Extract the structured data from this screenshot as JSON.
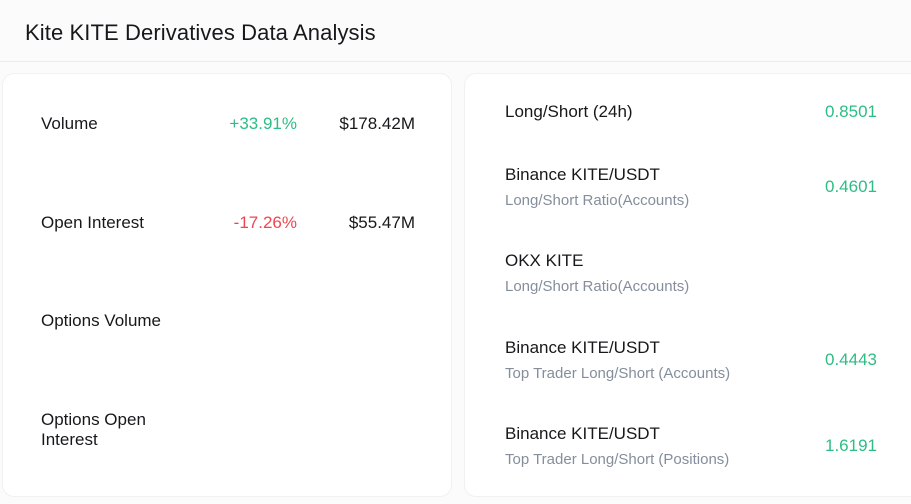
{
  "page": {
    "title": "Kite KITE Derivatives Data Analysis"
  },
  "colors": {
    "positive": "#2ebd85",
    "negative": "#ef4551",
    "ratio_value": "#2ebd85"
  },
  "left_panel": {
    "rows": [
      {
        "label": "Volume",
        "change": "+33.91%",
        "direction": "positive",
        "value": "$178.42M"
      },
      {
        "label": "Open Interest",
        "change": "-17.26%",
        "direction": "negative",
        "value": "$55.47M"
      },
      {
        "label": "Options Volume",
        "change": "",
        "direction": "",
        "value": ""
      },
      {
        "label": "Options Open Interest",
        "change": "",
        "direction": "",
        "value": ""
      }
    ]
  },
  "right_panel": {
    "rows": [
      {
        "title": "Long/Short (24h)",
        "subtitle": "",
        "value": "0.8501"
      },
      {
        "title": "Binance KITE/USDT",
        "subtitle": "Long/Short Ratio(Accounts)",
        "value": "0.4601"
      },
      {
        "title": "OKX KITE",
        "subtitle": "Long/Short Ratio(Accounts)",
        "value": ""
      },
      {
        "title": "Binance KITE/USDT",
        "subtitle": "Top Trader Long/Short (Accounts)",
        "value": "0.4443"
      },
      {
        "title": "Binance KITE/USDT",
        "subtitle": "Top Trader Long/Short (Positions)",
        "value": "1.6191"
      }
    ]
  }
}
